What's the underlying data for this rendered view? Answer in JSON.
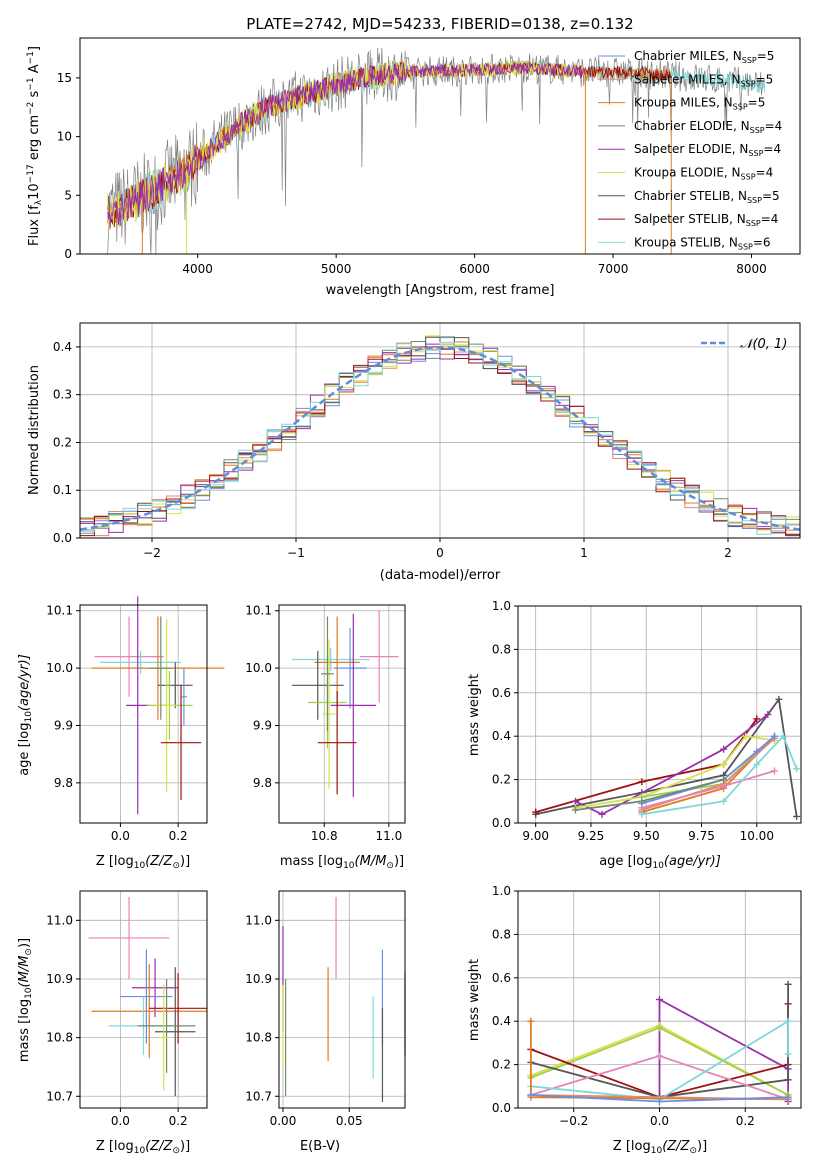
{
  "title": "PLATE=2742, MJD=54233, FIBERID=0138, z=0.132",
  "colors": {
    "Chabrier MILES": "#6a8fe0",
    "Salpeter MILES": "#e38a6b",
    "Kroupa MILES": "#e07b20",
    "Chabrier ELODIE": "#6d8e6a",
    "Salpeter ELODIE": "#9b2fae",
    "Kroupa ELODIE": "#d8e04a",
    "Chabrier STELIB": "#555555",
    "Salpeter STELIB": "#a01010",
    "Kroupa STELIB": "#80d8d8",
    "pink": "#e882b8",
    "lime": "#9fd04a",
    "normal": "#5b8fd9"
  },
  "chart_data": [
    {
      "type": "line",
      "id": "spectrum",
      "title": "PLATE=2742, MJD=54233, FIBERID=0138, z=0.132",
      "xlabel": "wavelength [Angstrom, rest frame]",
      "ylabel_main": "Flux [f",
      "ylabel_sub": "λ",
      "ylabel_rest": "10",
      "ylabel_exp1": "−17",
      "ylabel_mid": " erg cm",
      "ylabel_exp2": "−2",
      "ylabel_mid2": " s",
      "ylabel_exp3": "−1",
      "ylabel_end": " A",
      "ylabel_exp4": "−1",
      "ylabel_close": "]",
      "xlim": [
        3150,
        8350
      ],
      "ylim": [
        0,
        18.4
      ],
      "xticks": [
        4000,
        5000,
        6000,
        7000,
        8000
      ],
      "yticks": [
        0,
        5,
        10,
        15
      ],
      "envelope": {
        "x": [
          3350,
          3500,
          3700,
          3900,
          4000,
          4100,
          4300,
          4500,
          4700,
          4900,
          5100,
          5300,
          5500,
          5700,
          5900,
          6000,
          6200,
          6400,
          6600,
          6800,
          7000,
          7200,
          7400,
          7600,
          7800,
          8000,
          8100
        ],
        "y": [
          3.5,
          4.2,
          5.5,
          7.0,
          8.0,
          9.0,
          11.0,
          12.5,
          13.3,
          14.0,
          14.8,
          15.2,
          15.5,
          15.6,
          15.6,
          15.7,
          15.8,
          15.9,
          15.7,
          15.5,
          15.5,
          15.4,
          15.2,
          15.0,
          14.8,
          14.5,
          14.3
        ]
      },
      "legend": [
        {
          "label": "Chabrier MILES, N",
          "sub": "SSP",
          "val": "=5"
        },
        {
          "label": "Salpeter MILES, N",
          "sub": "SSP",
          "val": "=5"
        },
        {
          "label": "Kroupa MILES, N",
          "sub": "SSP",
          "val": "=5"
        },
        {
          "label": "Chabrier ELODIE, N",
          "sub": "SSP",
          "val": "=4"
        },
        {
          "label": "Salpeter ELODIE, N",
          "sub": "SSP",
          "val": "=4"
        },
        {
          "label": "Kroupa ELODIE, N",
          "sub": "SSP",
          "val": "=4"
        },
        {
          "label": "Chabrier STELIB, N",
          "sub": "SSP",
          "val": "=5"
        },
        {
          "label": "Salpeter STELIB, N",
          "sub": "SSP",
          "val": "=4"
        },
        {
          "label": "Kroupa STELIB, N",
          "sub": "SSP",
          "val": "=6"
        }
      ],
      "legend_colors": [
        "#6a8fe0",
        "#e38a6b",
        "#e07b20",
        "#6d8e6a",
        "#9b2fae",
        "#d8e04a",
        "#555555",
        "#a01010",
        "#80d8d8"
      ],
      "legend_position": "right",
      "grid": false
    },
    {
      "type": "line",
      "id": "residuals",
      "xlabel": "(data-model)/error",
      "ylabel": "Normed distribution",
      "xlim": [
        -2.5,
        2.5
      ],
      "ylim": [
        0,
        0.45
      ],
      "xticks": [
        -2,
        -1,
        0,
        1,
        2
      ],
      "xtick_labels": [
        "−2",
        "−1",
        "0",
        "1",
        "2"
      ],
      "yticks": [
        0.0,
        0.1,
        0.2,
        0.3,
        0.4
      ],
      "ytick_labels": [
        "0.0",
        "0.1",
        "0.2",
        "0.3",
        "0.4"
      ],
      "bin_width": 0.1,
      "series_type": "step histograms (9 models)",
      "reference": {
        "name": "𝒩(0, 1)",
        "mean": 0,
        "sigma": 1,
        "style": "dashed"
      },
      "legend_position": "top-right",
      "grid": true
    },
    {
      "type": "scatter",
      "id": "age-vs-Z",
      "xlabel": "Z [log",
      "xlabel_sub": "10",
      "xlabel_rest": "(Z/Z",
      "xlabel_sub2": "⊙",
      "xlabel_close": ")]",
      "ylabel": "age  [log",
      "ylabel_sub": "10",
      "ylabel_rest": "(age/yr)]",
      "xlim": [
        -0.14,
        0.3
      ],
      "ylim": [
        9.73,
        10.11
      ],
      "xticks": [
        0.0,
        0.2
      ],
      "yticks": [
        9.8,
        9.9,
        10.0,
        10.1
      ],
      "points": [
        {
          "x": 0.03,
          "y": 10.02,
          "xerr": 0.12,
          "yerr": 0.07,
          "color": "#e882b8"
        },
        {
          "x": 0.07,
          "y": 10.01,
          "xerr": 0.14,
          "yerr": 0.02,
          "color": "#80d8d8"
        },
        {
          "x": 0.13,
          "y": 10.0,
          "xerr": 0.23,
          "yerr": 0.09,
          "color": "#e07b20"
        },
        {
          "x": 0.06,
          "y": 9.935,
          "xerr": 0.04,
          "yerr": 0.19,
          "color": "#9b2fae"
        },
        {
          "x": 0.19,
          "y": 9.97,
          "xerr": 0.06,
          "yerr": 0.04,
          "color": "#555555"
        },
        {
          "x": 0.17,
          "y": 9.935,
          "xerr": 0.08,
          "yerr": 0.06,
          "color": "#9fd04a"
        },
        {
          "x": 0.16,
          "y": 9.935,
          "xerr": 0.03,
          "yerr": 0.15,
          "color": "#d8e04a"
        },
        {
          "x": 0.21,
          "y": 9.87,
          "xerr": 0.07,
          "yerr": 0.1,
          "color": "#a01010"
        },
        {
          "x": 0.14,
          "y": 10.0,
          "xerr": 0.04,
          "yerr": 0.09,
          "color": "#6d8e6a"
        },
        {
          "x": 0.22,
          "y": 9.95,
          "xerr": 0.01,
          "yerr": 0.05,
          "color": "#6a8fe0"
        }
      ],
      "grid": true
    },
    {
      "type": "scatter",
      "id": "age-vs-mass",
      "xlabel": "mass [log",
      "xlabel_sub": "10",
      "xlabel_rest": "(M/M",
      "xlabel_sub2": "⊙",
      "xlabel_close": ")]",
      "xlim": [
        10.66,
        11.05
      ],
      "ylim": [
        9.73,
        10.11
      ],
      "xticks": [
        10.8,
        11.0
      ],
      "yticks": [
        9.8,
        9.9,
        10.0,
        10.1
      ],
      "points": [
        {
          "x": 10.97,
          "y": 10.02,
          "xerr": 0.06,
          "yerr": 0.08,
          "color": "#e882b8"
        },
        {
          "x": 10.82,
          "y": 10.015,
          "xerr": 0.12,
          "yerr": 0.02,
          "color": "#80d8d8"
        },
        {
          "x": 10.84,
          "y": 10.01,
          "xerr": 0.07,
          "yerr": 0.08,
          "color": "#e07b20"
        },
        {
          "x": 10.88,
          "y": 10.0,
          "xerr": 0.05,
          "yerr": 0.07,
          "color": "#6a8fe0"
        },
        {
          "x": 10.89,
          "y": 9.935,
          "xerr": 0.07,
          "yerr": 0.16,
          "color": "#9b2fae"
        },
        {
          "x": 10.78,
          "y": 9.97,
          "xerr": 0.08,
          "yerr": 0.06,
          "color": "#555555"
        },
        {
          "x": 10.81,
          "y": 9.94,
          "xerr": 0.06,
          "yerr": 0.08,
          "color": "#9fd04a"
        },
        {
          "x": 10.815,
          "y": 9.92,
          "xerr": 0.02,
          "yerr": 0.13,
          "color": "#d8e04a"
        },
        {
          "x": 10.84,
          "y": 9.87,
          "xerr": 0.06,
          "yerr": 0.09,
          "color": "#a01010"
        },
        {
          "x": 10.81,
          "y": 9.99,
          "xerr": 0.02,
          "yerr": 0.1,
          "color": "#6d8e6a"
        }
      ],
      "grid": true
    },
    {
      "type": "line",
      "id": "weight-vs-age",
      "xlabel": "age  [log",
      "xlabel_sub": "10",
      "xlabel_rest": "(age/yr)]",
      "ylabel": "mass weight",
      "xlim": [
        8.92,
        10.2
      ],
      "ylim": [
        0,
        1.0
      ],
      "xticks": [
        9.0,
        9.25,
        9.5,
        9.75,
        10.0
      ],
      "xtick_labels": [
        "9.00",
        "9.25",
        "9.50",
        "9.75",
        "10.00"
      ],
      "yticks": [
        0.0,
        0.2,
        0.4,
        0.6,
        0.8,
        1.0
      ],
      "series": [
        {
          "color": "#555555",
          "x": [
            9.0,
            9.18,
            9.48,
            9.85,
            10.1,
            10.18
          ],
          "y": [
            0.04,
            0.08,
            0.14,
            0.22,
            0.57,
            0.03
          ]
        },
        {
          "color": "#a01010",
          "x": [
            9.0,
            9.48,
            9.85,
            10.0
          ],
          "y": [
            0.05,
            0.19,
            0.27,
            0.48
          ]
        },
        {
          "color": "#9b2fae",
          "x": [
            9.18,
            9.3,
            9.85,
            10.05
          ],
          "y": [
            0.1,
            0.04,
            0.34,
            0.5
          ]
        },
        {
          "color": "#d8e04a",
          "x": [
            9.18,
            9.48,
            9.85,
            9.95,
            10.08
          ],
          "y": [
            0.07,
            0.12,
            0.27,
            0.4,
            0.38
          ]
        },
        {
          "color": "#9fd04a",
          "x": [
            9.48,
            9.85,
            10.08
          ],
          "y": [
            0.12,
            0.18,
            0.4
          ]
        },
        {
          "color": "#e07b20",
          "x": [
            9.48,
            9.85,
            10.08
          ],
          "y": [
            0.05,
            0.16,
            0.4
          ]
        },
        {
          "color": "#e38a6b",
          "x": [
            9.48,
            9.85,
            10.08
          ],
          "y": [
            0.06,
            0.18,
            0.39
          ]
        },
        {
          "color": "#e882b8",
          "x": [
            9.48,
            9.85,
            10.08
          ],
          "y": [
            0.07,
            0.17,
            0.24
          ]
        },
        {
          "color": "#6a8fe0",
          "x": [
            9.48,
            9.85,
            10.0,
            10.08
          ],
          "y": [
            0.09,
            0.2,
            0.33,
            0.4
          ]
        },
        {
          "color": "#80d8d8",
          "x": [
            9.48,
            9.85,
            10.0,
            10.12,
            10.18
          ],
          "y": [
            0.04,
            0.1,
            0.27,
            0.4,
            0.25
          ]
        },
        {
          "color": "#6d8e6a",
          "x": [
            9.18,
            9.48,
            9.85
          ],
          "y": [
            0.06,
            0.1,
            0.2
          ]
        }
      ],
      "grid": true
    },
    {
      "type": "scatter",
      "id": "mass-vs-Z",
      "xlabel": "Z [log",
      "xlabel_sub": "10",
      "xlabel_rest": "(Z/Z",
      "xlabel_sub2": "⊙",
      "xlabel_close": ")]",
      "ylabel": "mass [log",
      "ylabel_sub": "10",
      "ylabel_rest": "(M/M",
      "ylabel_sub2": "⊙",
      "ylabel_close": ")]",
      "xlim": [
        -0.14,
        0.3
      ],
      "ylim": [
        10.68,
        11.05
      ],
      "xticks": [
        0.0,
        0.2
      ],
      "yticks": [
        10.7,
        10.8,
        10.9,
        11.0
      ],
      "points": [
        {
          "x": 0.03,
          "y": 10.97,
          "xerr": 0.14,
          "yerr": 0.07,
          "color": "#e882b8"
        },
        {
          "x": 0.12,
          "y": 10.885,
          "xerr": 0.08,
          "yerr": 0.05,
          "color": "#9b2fae"
        },
        {
          "x": 0.09,
          "y": 10.87,
          "xerr": 0.09,
          "yerr": 0.08,
          "color": "#6a8fe0"
        },
        {
          "x": 0.1,
          "y": 10.845,
          "xerr": 0.2,
          "yerr": 0.08,
          "color": "#e07b20"
        },
        {
          "x": 0.2,
          "y": 10.85,
          "xerr": 0.1,
          "yerr": 0.06,
          "color": "#a01010"
        },
        {
          "x": 0.08,
          "y": 10.82,
          "xerr": 0.12,
          "yerr": 0.05,
          "color": "#80d8d8"
        },
        {
          "x": 0.19,
          "y": 10.81,
          "xerr": 0.07,
          "yerr": 0.11,
          "color": "#555555"
        },
        {
          "x": 0.16,
          "y": 10.82,
          "xerr": 0.1,
          "yerr": 0.08,
          "color": "#6d8e6a"
        },
        {
          "x": 0.15,
          "y": 10.8,
          "xerr": 0.02,
          "yerr": 0.09,
          "color": "#d8e04a"
        }
      ],
      "grid": true
    },
    {
      "type": "scatter",
      "id": "mass-vs-EBV",
      "xlabel": "E(B-V)",
      "xlim": [
        -0.003,
        0.092
      ],
      "ylim": [
        10.68,
        11.05
      ],
      "xticks": [
        0.0,
        0.05
      ],
      "xtick_labels": [
        "0.00",
        "0.05"
      ],
      "yticks": [
        10.7,
        10.8,
        10.9,
        11.0
      ],
      "points": [
        {
          "x": 0.0,
          "y": 10.9,
          "yerr": 0.09,
          "color": "#9b2fae"
        },
        {
          "x": 0.0,
          "y": 10.82,
          "yerr": 0.07,
          "color": "#d8e04a"
        },
        {
          "x": 0.002,
          "y": 10.8,
          "yerr": 0.1,
          "color": "#6d8e6a"
        },
        {
          "x": 0.034,
          "y": 10.84,
          "yerr": 0.08,
          "color": "#e07b20"
        },
        {
          "x": 0.04,
          "y": 10.97,
          "yerr": 0.07,
          "color": "#e882b8"
        },
        {
          "x": 0.068,
          "y": 10.8,
          "yerr": 0.07,
          "color": "#80d8d8"
        },
        {
          "x": 0.075,
          "y": 10.87,
          "yerr": 0.08,
          "color": "#6a8fe0"
        },
        {
          "x": 0.075,
          "y": 10.77,
          "yerr": 0.08,
          "color": "#555555"
        },
        {
          "x": 0.092,
          "y": 10.84,
          "yerr": 0.07,
          "color": "#a01010"
        }
      ],
      "grid": true
    },
    {
      "type": "line",
      "id": "weight-vs-Z",
      "xlabel": "Z [log",
      "xlabel_sub": "10",
      "xlabel_rest": "(Z/Z",
      "xlabel_sub2": "⊙",
      "xlabel_close": ")]",
      "ylabel": "mass weight",
      "xlim": [
        -0.33,
        0.33
      ],
      "ylim": [
        0,
        1.0
      ],
      "xticks": [
        -0.2,
        0.0,
        0.2
      ],
      "xtick_labels": [
        "−0.2",
        "0.0",
        "0.2"
      ],
      "yticks": [
        0.0,
        0.2,
        0.4,
        0.6,
        0.8,
        1.0
      ],
      "series": [
        {
          "color": "#9b2fae",
          "x": [
            0.0,
            0.0,
            0.3,
            0.3
          ],
          "y": [
            0.05,
            0.5,
            0.18,
            0.03
          ]
        },
        {
          "color": "#d8e04a",
          "x": [
            -0.3,
            0.0,
            0.3
          ],
          "y": [
            0.15,
            0.38,
            0.06
          ]
        },
        {
          "color": "#9fd04a",
          "x": [
            -0.3,
            0.0,
            0.3
          ],
          "y": [
            0.14,
            0.37,
            0.06
          ]
        },
        {
          "color": "#a01010",
          "x": [
            -0.3,
            0.0,
            0.3,
            0.3
          ],
          "y": [
            0.27,
            0.05,
            0.2,
            0.48
          ]
        },
        {
          "color": "#555555",
          "x": [
            -0.3,
            0.0,
            0.3,
            0.3
          ],
          "y": [
            0.21,
            0.05,
            0.13,
            0.57
          ]
        },
        {
          "color": "#e882b8",
          "x": [
            -0.3,
            0.0,
            0.3
          ],
          "y": [
            0.06,
            0.24,
            0.04
          ]
        },
        {
          "color": "#80d8d8",
          "x": [
            -0.3,
            0.0,
            0.3,
            0.3
          ],
          "y": [
            0.1,
            0.04,
            0.4,
            0.25
          ]
        },
        {
          "color": "#e07b20",
          "x": [
            -0.3,
            -0.3,
            0.3
          ],
          "y": [
            0.4,
            0.05,
            0.04
          ]
        },
        {
          "color": "#e38a6b",
          "x": [
            -0.3,
            0.3
          ],
          "y": [
            0.06,
            0.04
          ]
        },
        {
          "color": "#6a8fe0",
          "x": [
            -0.3,
            0.0,
            0.3
          ],
          "y": [
            0.06,
            0.03,
            0.05
          ]
        }
      ],
      "grid": true
    }
  ]
}
